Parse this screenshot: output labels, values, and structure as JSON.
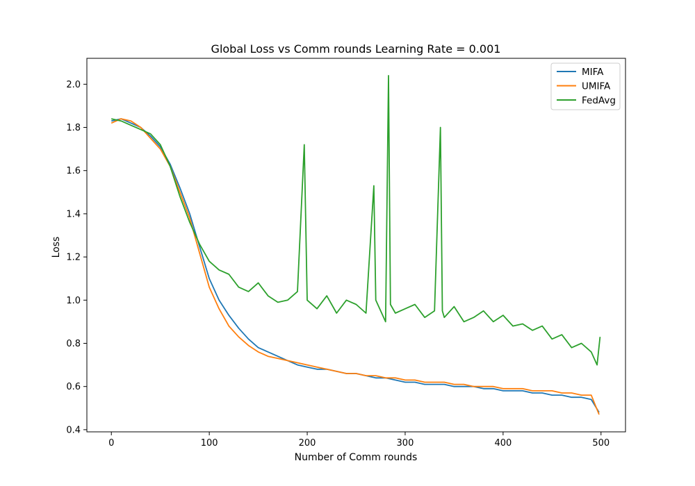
{
  "chart_data": {
    "type": "line",
    "title": "Global Loss vs Comm rounds Learning Rate = 0.001",
    "xlabel": "Number of Comm rounds",
    "ylabel": "Loss",
    "xlim": [
      -25,
      525
    ],
    "ylim": [
      0.39,
      2.12
    ],
    "xticks": [
      0,
      100,
      200,
      300,
      400,
      500
    ],
    "yticks": [
      0.4,
      0.6,
      0.8,
      1.0,
      1.2,
      1.4,
      1.6,
      1.8,
      2.0
    ],
    "xtick_labels": [
      "0",
      "100",
      "200",
      "300",
      "400",
      "500"
    ],
    "ytick_labels": [
      "0.4",
      "0.6",
      "0.8",
      "1.0",
      "1.2",
      "1.4",
      "1.6",
      "1.8",
      "2.0"
    ],
    "grid": false,
    "legend_position": "top-right",
    "series": [
      {
        "name": "MIFA",
        "color": "#1f77b4",
        "x": [
          0,
          10,
          20,
          30,
          40,
          50,
          60,
          70,
          80,
          90,
          100,
          110,
          120,
          130,
          140,
          150,
          160,
          170,
          180,
          190,
          200,
          210,
          220,
          230,
          240,
          250,
          260,
          270,
          280,
          290,
          300,
          310,
          320,
          330,
          340,
          350,
          360,
          370,
          380,
          390,
          400,
          410,
          420,
          430,
          440,
          450,
          460,
          470,
          480,
          490,
          498
        ],
        "y": [
          1.83,
          1.84,
          1.82,
          1.8,
          1.76,
          1.71,
          1.63,
          1.52,
          1.4,
          1.25,
          1.1,
          1.0,
          0.93,
          0.87,
          0.82,
          0.78,
          0.76,
          0.74,
          0.72,
          0.7,
          0.69,
          0.68,
          0.68,
          0.67,
          0.66,
          0.66,
          0.65,
          0.64,
          0.64,
          0.63,
          0.62,
          0.62,
          0.61,
          0.61,
          0.61,
          0.6,
          0.6,
          0.6,
          0.59,
          0.59,
          0.58,
          0.58,
          0.58,
          0.57,
          0.57,
          0.56,
          0.56,
          0.55,
          0.55,
          0.54,
          0.48
        ]
      },
      {
        "name": "UMIFA",
        "color": "#ff7f0e",
        "x": [
          0,
          10,
          20,
          30,
          40,
          50,
          60,
          70,
          80,
          90,
          100,
          110,
          120,
          130,
          140,
          150,
          160,
          170,
          180,
          190,
          200,
          210,
          220,
          230,
          240,
          250,
          260,
          270,
          280,
          290,
          300,
          310,
          320,
          330,
          340,
          350,
          360,
          370,
          380,
          390,
          400,
          410,
          420,
          430,
          440,
          450,
          460,
          470,
          480,
          490,
          498
        ],
        "y": [
          1.82,
          1.84,
          1.83,
          1.8,
          1.75,
          1.7,
          1.62,
          1.5,
          1.38,
          1.22,
          1.06,
          0.96,
          0.88,
          0.83,
          0.79,
          0.76,
          0.74,
          0.73,
          0.72,
          0.71,
          0.7,
          0.69,
          0.68,
          0.67,
          0.66,
          0.66,
          0.65,
          0.65,
          0.64,
          0.64,
          0.63,
          0.63,
          0.62,
          0.62,
          0.62,
          0.61,
          0.61,
          0.6,
          0.6,
          0.6,
          0.59,
          0.59,
          0.59,
          0.58,
          0.58,
          0.58,
          0.57,
          0.57,
          0.56,
          0.56,
          0.47
        ]
      },
      {
        "name": "FedAvg",
        "color": "#2ca02c",
        "x": [
          0,
          10,
          20,
          30,
          40,
          50,
          60,
          70,
          80,
          90,
          100,
          110,
          120,
          130,
          140,
          150,
          160,
          170,
          180,
          190,
          197,
          200,
          210,
          220,
          230,
          240,
          250,
          260,
          268,
          270,
          280,
          283,
          285,
          290,
          300,
          310,
          320,
          330,
          336,
          338,
          340,
          350,
          360,
          370,
          380,
          390,
          400,
          410,
          420,
          430,
          440,
          450,
          460,
          470,
          480,
          490,
          496,
          499
        ],
        "y": [
          1.84,
          1.83,
          1.81,
          1.79,
          1.77,
          1.72,
          1.62,
          1.48,
          1.36,
          1.26,
          1.18,
          1.14,
          1.12,
          1.06,
          1.04,
          1.08,
          1.02,
          0.99,
          1.0,
          1.04,
          1.72,
          1.0,
          0.96,
          1.02,
          0.94,
          1.0,
          0.98,
          0.94,
          1.53,
          1.0,
          0.9,
          2.04,
          0.98,
          0.94,
          0.96,
          0.98,
          0.92,
          0.95,
          1.8,
          0.95,
          0.92,
          0.97,
          0.9,
          0.92,
          0.95,
          0.9,
          0.93,
          0.88,
          0.89,
          0.86,
          0.88,
          0.82,
          0.84,
          0.78,
          0.8,
          0.76,
          0.7,
          0.83
        ]
      }
    ]
  }
}
